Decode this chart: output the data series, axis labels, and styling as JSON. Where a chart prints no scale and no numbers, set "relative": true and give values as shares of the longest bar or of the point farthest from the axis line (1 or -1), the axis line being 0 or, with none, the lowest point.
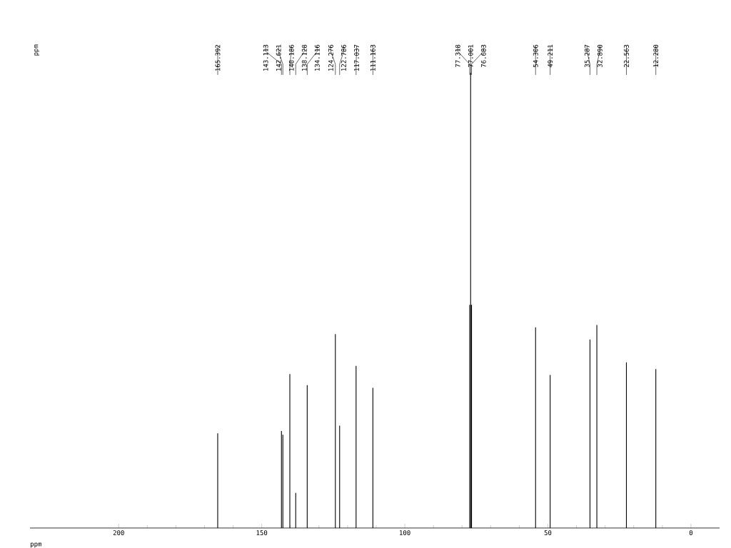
{
  "chart_data": {
    "type": "bar",
    "relative": true,
    "color": "#000000",
    "xlabel": "ppm",
    "xlim": [
      231,
      -10
    ],
    "xticks": [
      200,
      150,
      100,
      50,
      0
    ],
    "x": [
      165.392,
      143.113,
      142.621,
      140.186,
      138.128,
      134.116,
      124.276,
      122.786,
      117.037,
      111.163,
      77.318,
      77.001,
      76.683,
      54.306,
      49.211,
      35.287,
      32.89,
      22.563,
      12.28
    ],
    "values": [
      0.208,
      0.213,
      0.205,
      0.338,
      0.077,
      0.314,
      0.426,
      0.225,
      0.356,
      0.308,
      0.49,
      1,
      0.49,
      0.441,
      0.336,
      0.414,
      0.446,
      0.364,
      0.349
    ],
    "annotations": [
      "ppm",
      "165.392",
      "143.113",
      "142.621",
      "140.186",
      "138.128",
      "134.116",
      "124.276",
      "122.786",
      "117.037",
      "111.163",
      "77.318",
      "77.001",
      "76.683",
      "54.306",
      "49.211",
      "35.287",
      "32.890",
      "22.563",
      "12.280"
    ]
  }
}
